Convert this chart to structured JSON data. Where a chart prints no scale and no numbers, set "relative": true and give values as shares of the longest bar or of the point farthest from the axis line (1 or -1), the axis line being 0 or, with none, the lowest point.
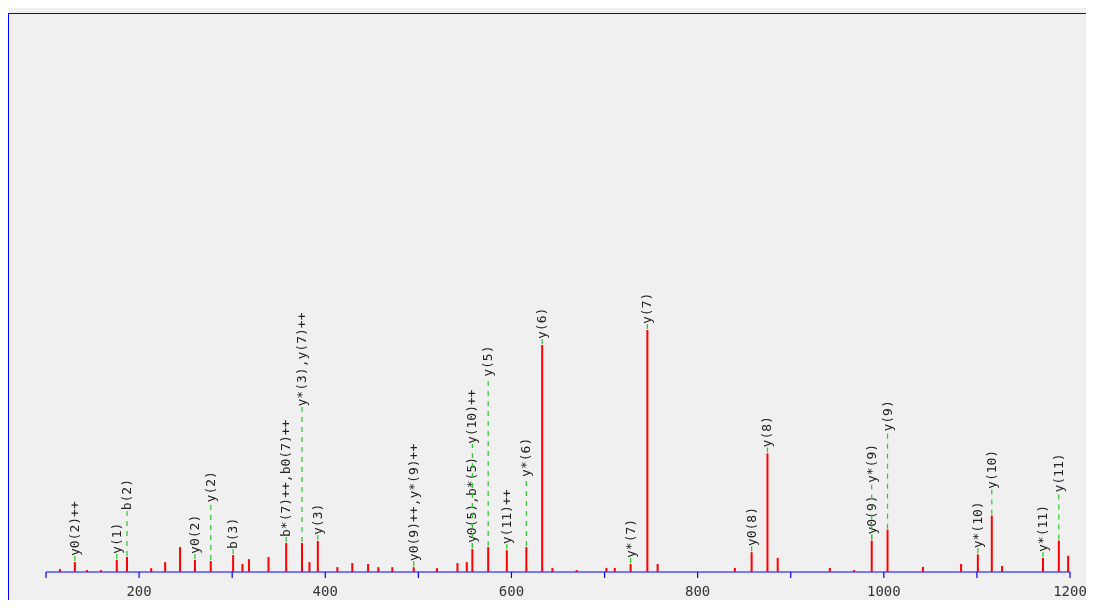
{
  "chart_data": {
    "type": "bar",
    "relative": true,
    "x": [
      115,
      131,
      144,
      159,
      176,
      187,
      213,
      228,
      244,
      260,
      277,
      301,
      311,
      318,
      339,
      358,
      375,
      383,
      392,
      413,
      429,
      446,
      457,
      472,
      495,
      520,
      542,
      552,
      558,
      575,
      595,
      616,
      633,
      644,
      670,
      702,
      711,
      728,
      746,
      757,
      840,
      858,
      875,
      886,
      942,
      968,
      987,
      1004,
      1042,
      1083,
      1101,
      1116,
      1127,
      1171,
      1188,
      1198
    ],
    "series": [
      {
        "color": "#ff0000",
        "values": [
          0.012,
          0.041,
          0.008,
          0.008,
          0.05,
          0.062,
          0.016,
          0.041,
          0.103,
          0.05,
          0.045,
          0.07,
          0.033,
          0.053,
          0.062,
          0.12,
          0.12,
          0.041,
          0.128,
          0.02,
          0.037,
          0.033,
          0.02,
          0.02,
          0.02,
          0.016,
          0.037,
          0.041,
          0.095,
          0.103,
          0.09,
          0.103,
          0.938,
          0.017,
          0.008,
          0.017,
          0.017,
          0.033,
          1,
          0.033,
          0.017,
          0.082,
          0.49,
          0.058,
          0.017,
          0.008,
          0.13,
          0.175,
          0.021,
          0.033,
          0.073,
          0.233,
          0.025,
          0.058,
          0.13,
          0.067
        ]
      }
    ],
    "xlim": [
      100,
      1200
    ],
    "xticks": [
      {
        "value": 100,
        "label": null
      },
      200,
      {
        "value": 300,
        "label": null
      },
      400,
      {
        "value": 500,
        "label": null
      },
      600,
      {
        "value": 700,
        "label": null
      },
      800,
      {
        "value": 900,
        "label": null
      },
      1000,
      {
        "value": 1100,
        "label": null
      },
      1200
    ],
    "annotations": [
      {
        "text": "y0(2)++",
        "x": 131,
        "y": 0.041
      },
      {
        "text": "y(1)",
        "x": 176,
        "y": 0.05
      },
      {
        "text": "b(2)",
        "x": 187,
        "y": 0.062
      },
      {
        "text": "y0(2)",
        "x": 260,
        "y": 0.05
      },
      {
        "text": "y(2)",
        "x": 277,
        "y": 0.045
      },
      {
        "text": "b(3)",
        "x": 301,
        "y": 0.07
      },
      {
        "text": "b*(7)++,b0(7)++",
        "x": 358,
        "y": 0.12
      },
      {
        "text": "y*(3),y(7)++",
        "x": 375,
        "y": 0.12
      },
      {
        "text": "y(3)",
        "x": 392,
        "y": 0.128
      },
      {
        "text": "y0(9)++,y*(9)++",
        "x": 495,
        "y": 0.02
      },
      {
        "text": "y0(5),b*(5)",
        "x": 558,
        "y": 0.095
      },
      {
        "text": "y(10)++",
        "x": 558,
        "y": 0.095
      },
      {
        "text": "y(5)",
        "x": 575,
        "y": 0.103
      },
      {
        "text": "y(11)++",
        "x": 595,
        "y": 0.09
      },
      {
        "text": "y*(6)",
        "x": 616,
        "y": 0.103
      },
      {
        "text": "y(6)",
        "x": 633,
        "y": 0.938
      },
      {
        "text": "y*(7)",
        "x": 728,
        "y": 0.033
      },
      {
        "text": "y(7)",
        "x": 746,
        "y": 1
      },
      {
        "text": "y0(8)",
        "x": 858,
        "y": 0.082
      },
      {
        "text": "y(8)",
        "x": 875,
        "y": 0.49
      },
      {
        "text": "y0(9)",
        "x": 987,
        "y": 0.13
      },
      {
        "text": "y*(9)",
        "x": 987,
        "y": 0.13
      },
      {
        "text": "y(9)",
        "x": 1004,
        "y": 0.175
      },
      {
        "text": "y*(10)",
        "x": 1101,
        "y": 0.073
      },
      {
        "text": "y(10)",
        "x": 1116,
        "y": 0.233
      },
      {
        "text": "y*(11)",
        "x": 1171,
        "y": 0.058
      },
      {
        "text": "y(11)",
        "x": 1188,
        "y": 0.13
      }
    ]
  }
}
